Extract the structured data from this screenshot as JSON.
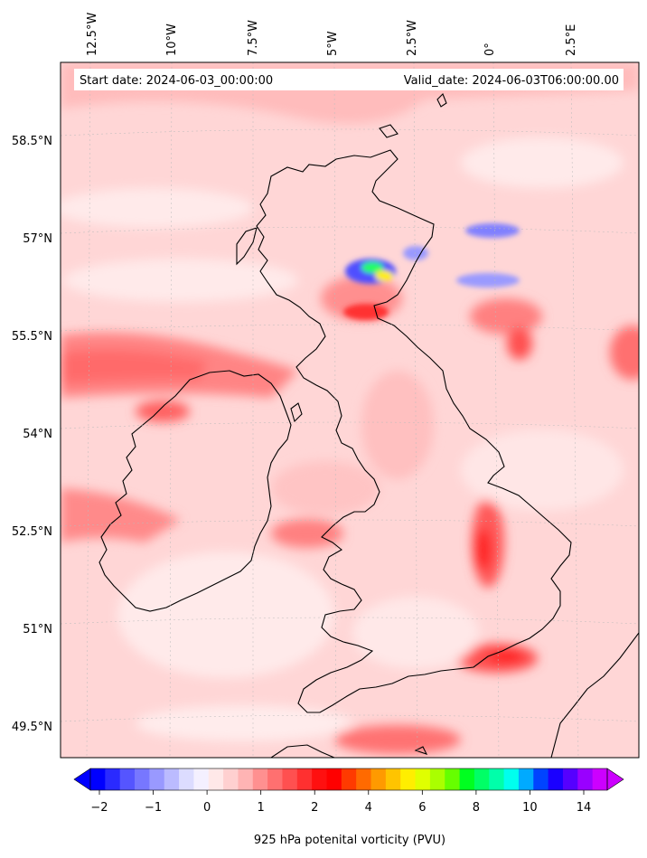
{
  "header": {
    "start_label": "Start date: 2024-06-03_00:00:00",
    "valid_label": "Valid_date: 2024-06-03T06:00:00.00"
  },
  "longitude_labels": [
    "12.5°W",
    "10°W",
    "7.5°W",
    "5°W",
    "2.5°W",
    "0°",
    "2.5°E"
  ],
  "latitude_labels": [
    "58.5°N",
    "57°N",
    "55.5°N",
    "54°N",
    "52.5°N",
    "51°N",
    "49.5°N"
  ],
  "colorbar": {
    "label": "925 hPa potenital vorticity (PVU)",
    "ticks": [
      "−2",
      "−1",
      "0",
      "1",
      "2",
      "4",
      "6",
      "8",
      "10",
      "14"
    ],
    "colors": [
      "#0000ff",
      "#2a2aff",
      "#5555ff",
      "#7777ff",
      "#9999ff",
      "#bbbbff",
      "#dcdcff",
      "#f4f0ff",
      "#ffe8e8",
      "#ffd0d0",
      "#ffb4b4",
      "#ff9090",
      "#ff7070",
      "#ff5050",
      "#ff3030",
      "#ff1010",
      "#ff0000",
      "#ff3a00",
      "#ff6a00",
      "#ff9a00",
      "#ffc400",
      "#ffee00",
      "#e0ff00",
      "#aaff00",
      "#66ff00",
      "#00ff20",
      "#00ff66",
      "#00ffaa",
      "#00ffee",
      "#00aaff",
      "#0044ff",
      "#1a00ff",
      "#5500ff",
      "#9900ff",
      "#cc00ff"
    ]
  },
  "colors": {
    "land_outline": "#000000",
    "background_field": "#ffd2d2",
    "grid": "#cccccc"
  }
}
